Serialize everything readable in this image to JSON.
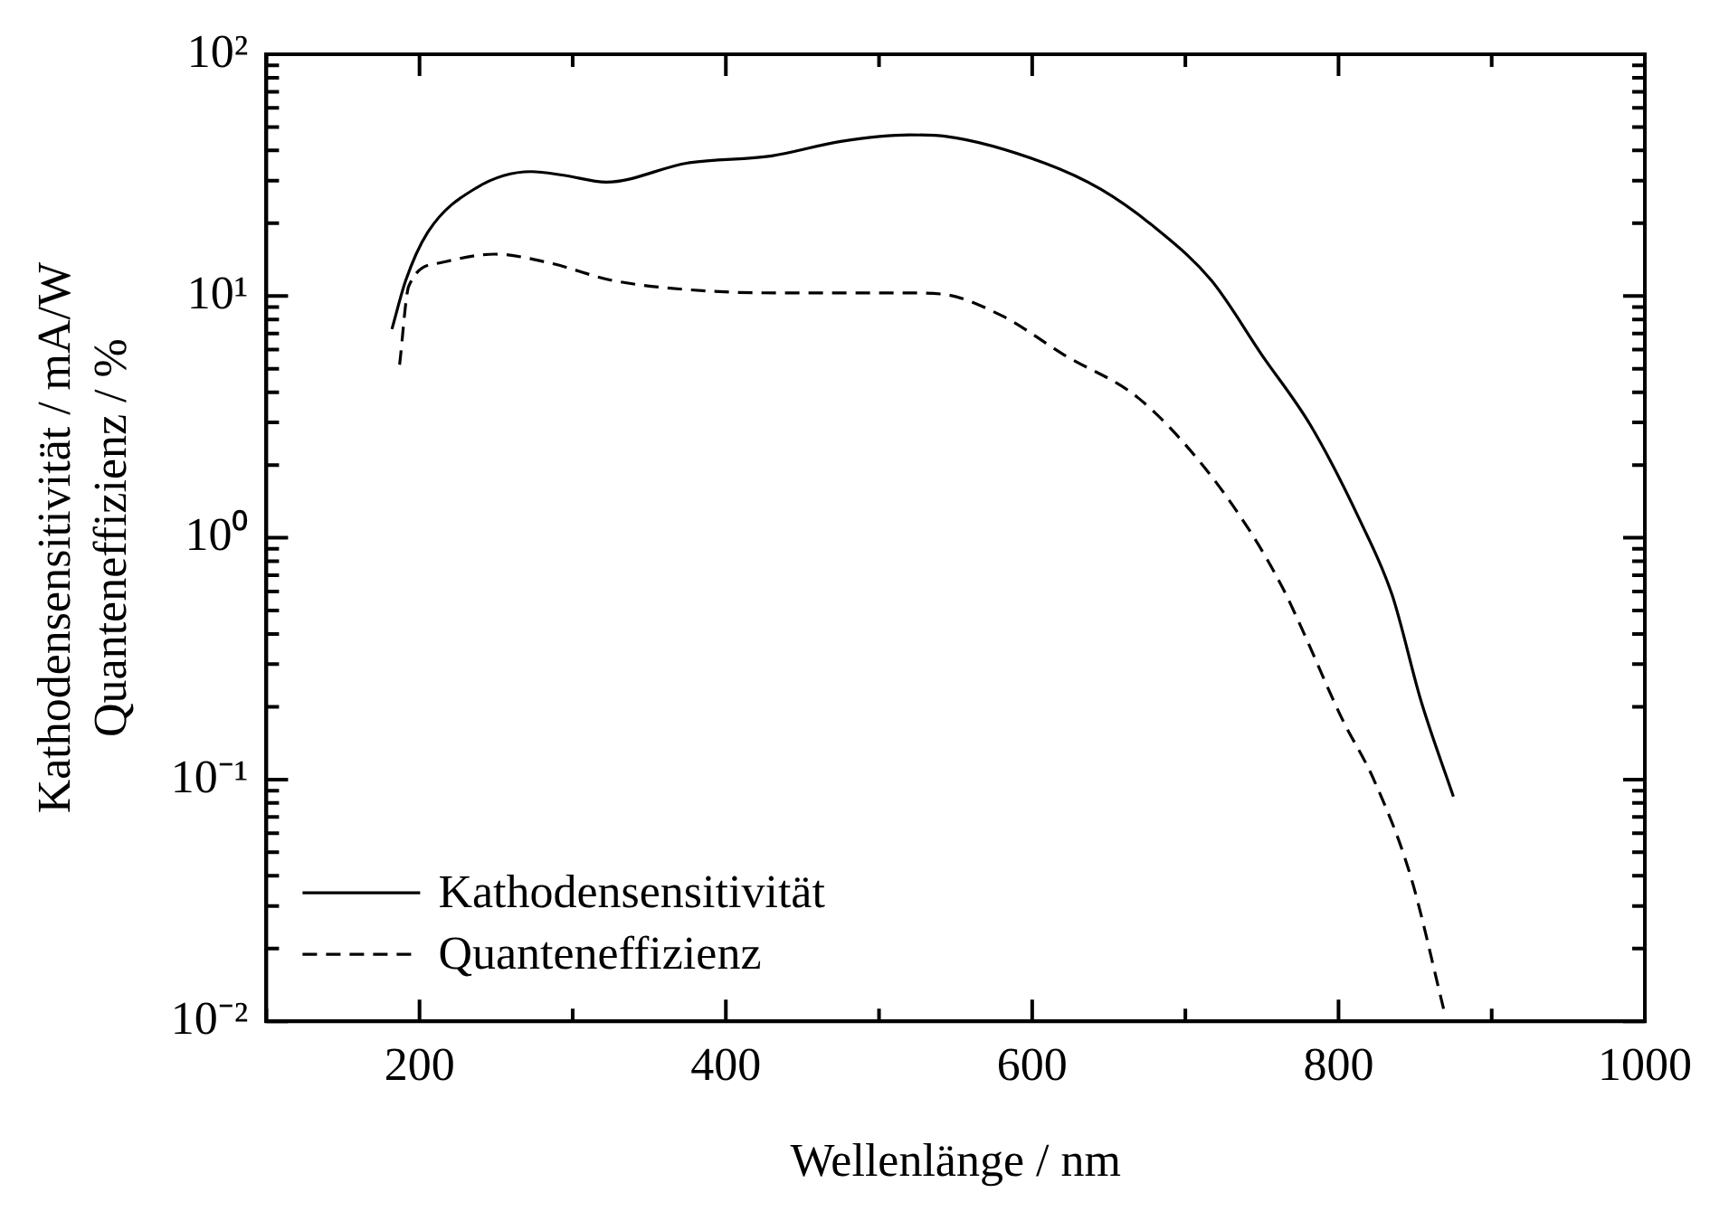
{
  "chart_data": {
    "type": "line",
    "xlabel": "Wellenlänge / nm",
    "ylabel": "Kathodensensitivität / mA/W\nQuanteneffizienz / %",
    "log": "y",
    "grid": false,
    "legend": "bottom left",
    "marker": "none",
    "xlim": [
      100,
      1000
    ],
    "xticks": [
      {
        "value": 100,
        "label": null
      },
      200,
      {
        "value": 300,
        "label": null
      },
      400,
      {
        "value": 500,
        "label": null
      },
      600,
      {
        "value": 700,
        "label": null
      },
      800,
      {
        "value": 900,
        "label": null
      },
      1000
    ],
    "ylim": [
      0.01,
      100
    ],
    "yticks": [
      {
        "value": 0.01,
        "label": "10⁻²"
      },
      {
        "value": 0.02,
        "label": null
      },
      {
        "value": 0.03,
        "label": null
      },
      {
        "value": 0.04,
        "label": null
      },
      {
        "value": 0.05,
        "label": null
      },
      {
        "value": 0.06,
        "label": null
      },
      {
        "value": 0.07,
        "label": null
      },
      {
        "value": 0.08,
        "label": null
      },
      {
        "value": 0.09,
        "label": null
      },
      {
        "value": 0.1,
        "label": "10⁻¹"
      },
      {
        "value": 0.2,
        "label": null
      },
      {
        "value": 0.3,
        "label": null
      },
      {
        "value": 0.4,
        "label": null
      },
      {
        "value": 0.5,
        "label": null
      },
      {
        "value": 0.6,
        "label": null
      },
      {
        "value": 0.7,
        "label": null
      },
      {
        "value": 0.8,
        "label": null
      },
      {
        "value": 0.9,
        "label": null
      },
      {
        "value": 1,
        "label": "10⁰"
      },
      {
        "value": 2,
        "label": null
      },
      {
        "value": 3,
        "label": null
      },
      {
        "value": 4,
        "label": null
      },
      {
        "value": 5,
        "label": null
      },
      {
        "value": 6,
        "label": null
      },
      {
        "value": 7,
        "label": null
      },
      {
        "value": 8,
        "label": null
      },
      {
        "value": 9,
        "label": null
      },
      {
        "value": 10,
        "label": "10¹"
      },
      {
        "value": 20,
        "label": null
      },
      {
        "value": 30,
        "label": null
      },
      {
        "value": 40,
        "label": null
      },
      {
        "value": 50,
        "label": null
      },
      {
        "value": 60,
        "label": null
      },
      {
        "value": 70,
        "label": null
      },
      {
        "value": 80,
        "label": null
      },
      {
        "value": 90,
        "label": null
      },
      {
        "value": 100,
        "label": "10²"
      }
    ],
    "series": [
      {
        "name": "Kathodensensitivität",
        "color": "#000000",
        "line_style": "solid",
        "x": [
          182,
          191,
          205,
          237,
          273,
          294,
          322,
          375,
          430,
          475,
          520,
          544,
          608,
          645,
          681,
          717,
          750,
          782,
          814,
          835,
          854,
          875
        ],
        "values": [
          7.3,
          11.6,
          18.2,
          28,
          32.7,
          31.6,
          29.6,
          35.5,
          38,
          43.6,
          46.4,
          45.7,
          35.5,
          27.6,
          19,
          11.6,
          5.7,
          2.9,
          1.18,
          0.58,
          0.21,
          0.085
        ]
      },
      {
        "name": "Quanteneffizienz",
        "color": "#000000",
        "line_style": "dashed",
        "x": [
          187,
          193,
          213,
          249,
          285,
          326,
          387,
          443,
          515,
          540,
          580,
          621,
          669,
          709,
          742,
          763,
          774,
          802,
          823,
          847,
          869
        ],
        "values": [
          5.2,
          11,
          13.7,
          14.9,
          13.7,
          11.6,
          10.5,
          10.3,
          10.3,
          10.2,
          8.3,
          5.7,
          3.8,
          2.08,
          1.07,
          0.63,
          0.45,
          0.18,
          0.1,
          0.04,
          0.011
        ]
      }
    ]
  }
}
